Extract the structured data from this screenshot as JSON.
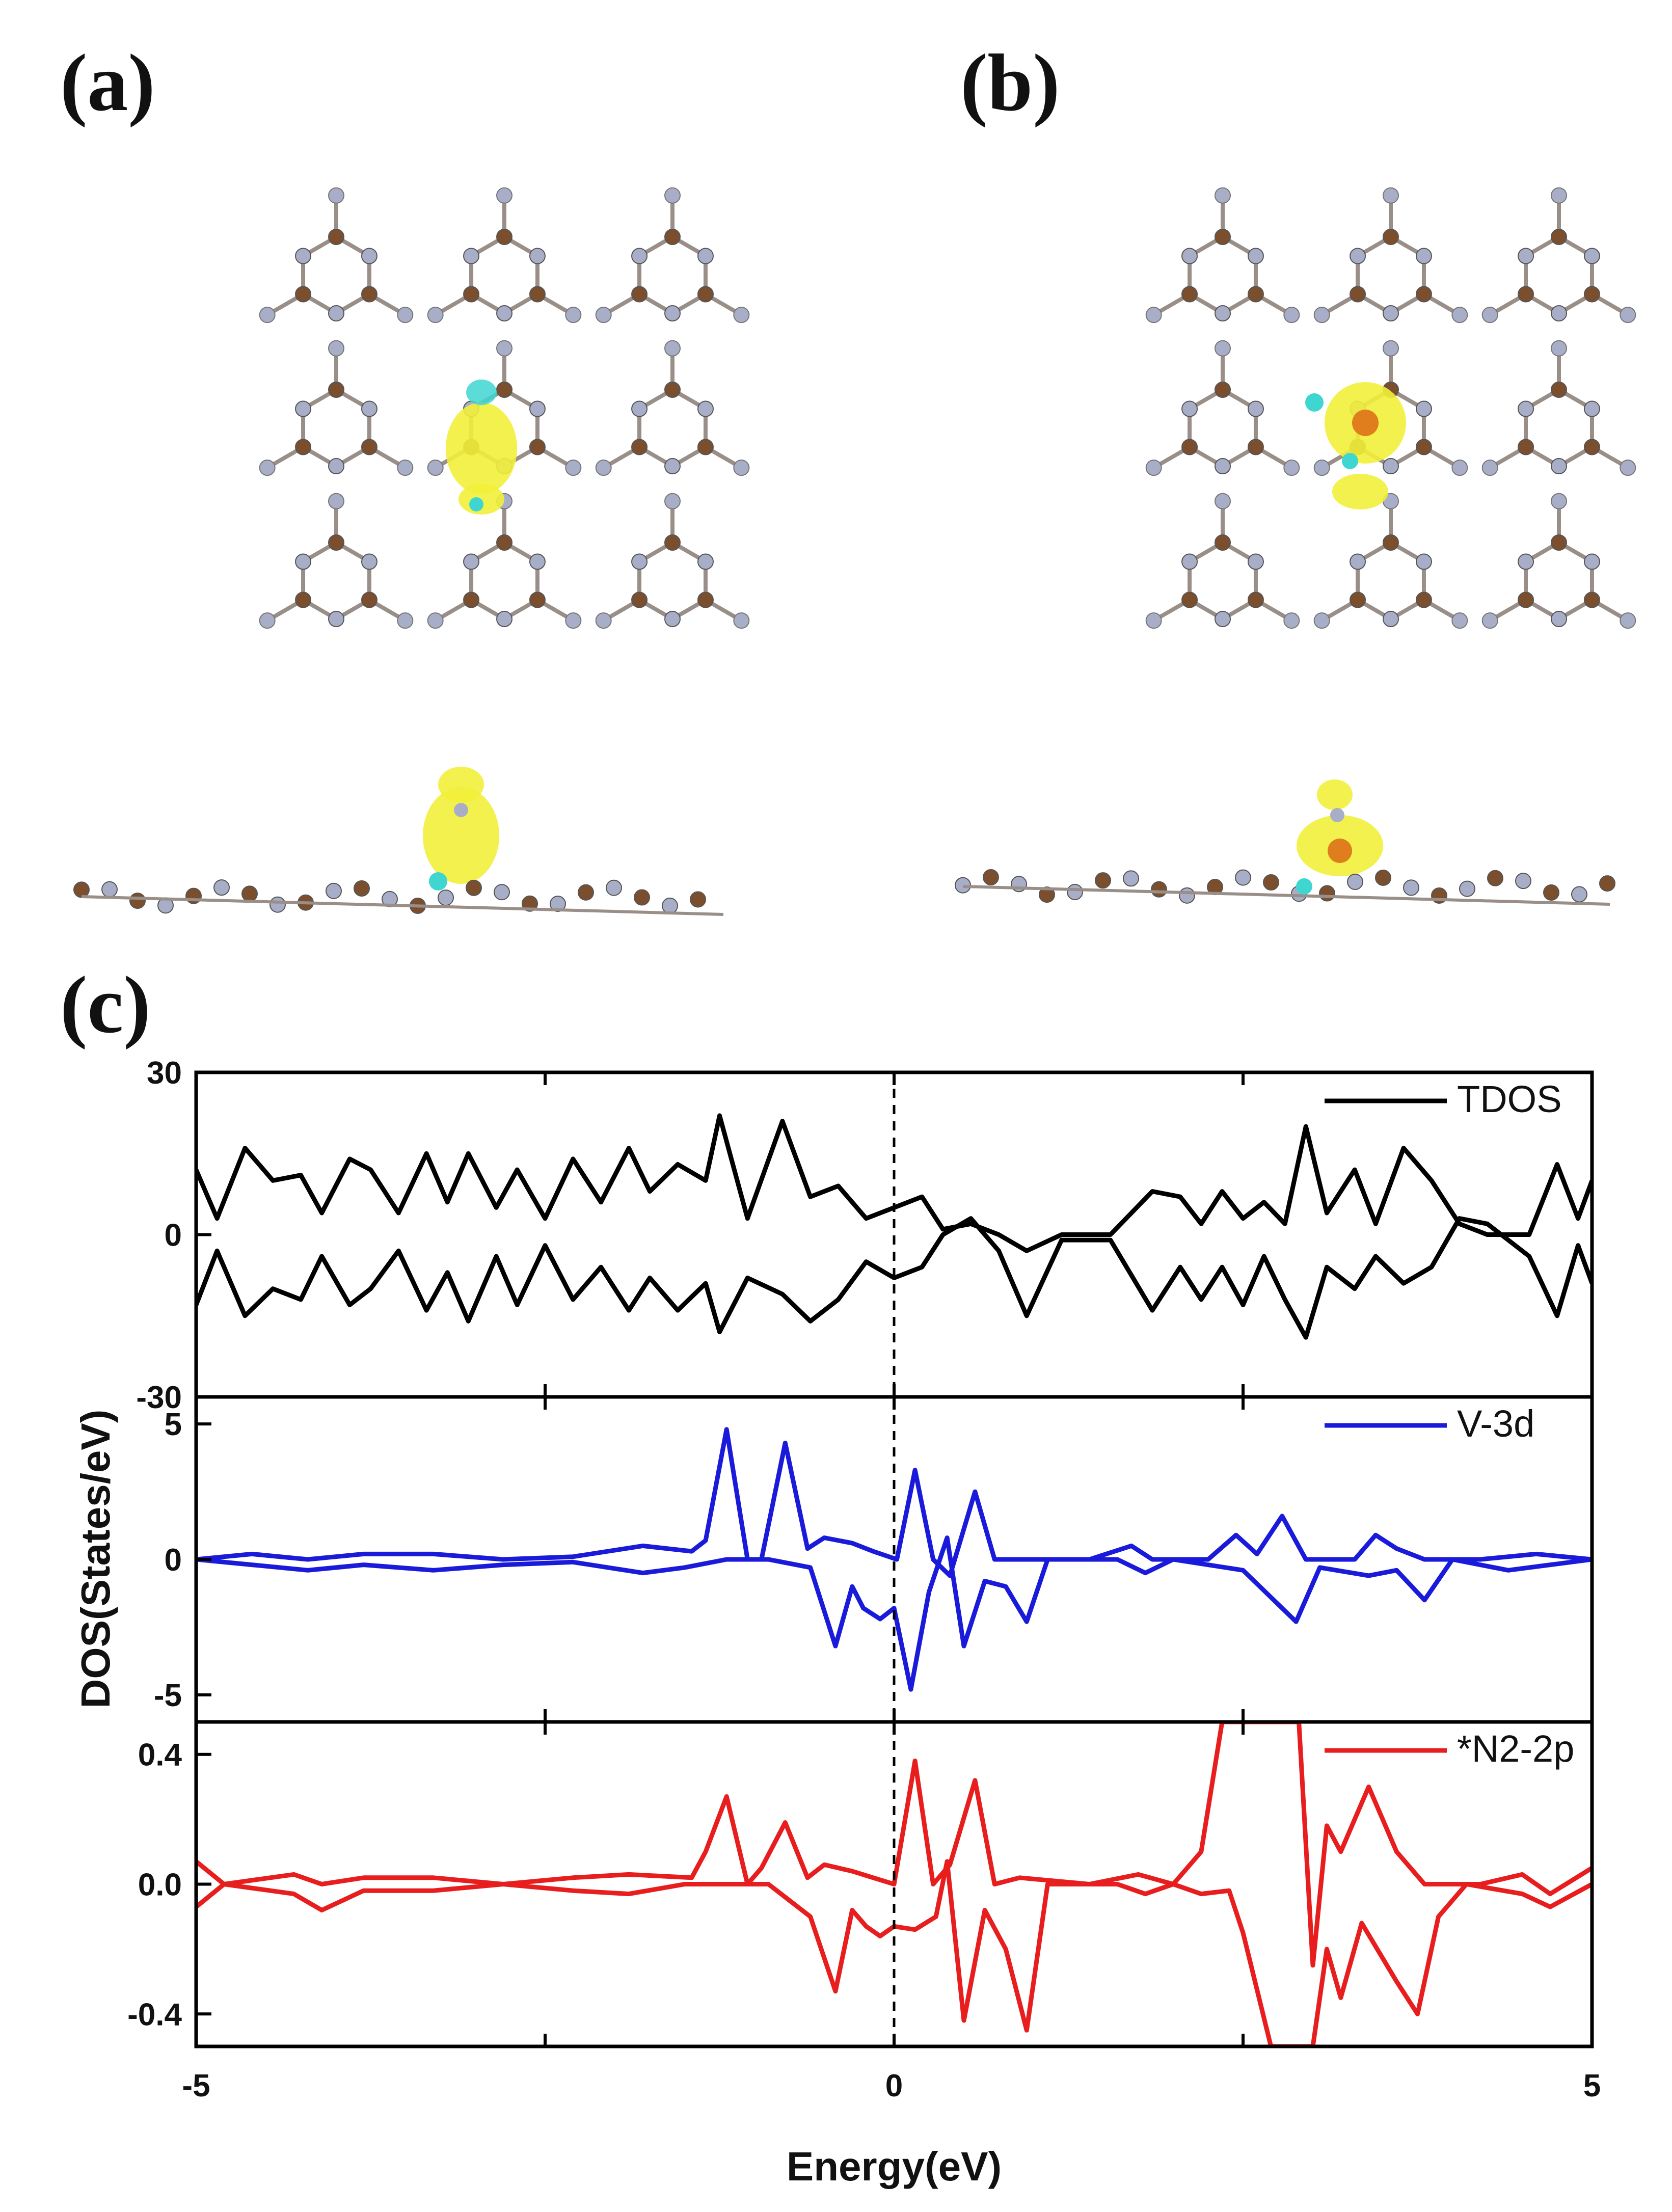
{
  "panels": {
    "a": "(a)",
    "b": "(b)",
    "c": "(c)"
  },
  "colors": {
    "carbon": "#7b4f2e",
    "nitrogen": "#a9aec8",
    "isosurface_yellow": "#f2ef3a",
    "isosurface_cyan": "#3fd6d2",
    "vanadium": "#e07d1c",
    "tdos": "#000000",
    "v3d": "#1a1adb",
    "n2p": "#e81d1d"
  },
  "chart_data": {
    "type": "line",
    "xlabel": "Energy(eV)",
    "ylabel": "DOS(States/eV)",
    "xlim": [
      -5,
      5
    ],
    "xticks": [
      "-5",
      "0",
      "5"
    ],
    "fermi_level": 0,
    "subplots": [
      {
        "name": "TDOS",
        "color": "#000000",
        "ylim": [
          -30,
          30
        ],
        "yticks": [
          "30",
          "0",
          "-30"
        ],
        "spin_up": [
          [
            -5,
            12
          ],
          [
            -4.85,
            3
          ],
          [
            -4.65,
            16
          ],
          [
            -4.45,
            10
          ],
          [
            -4.25,
            11
          ],
          [
            -4.1,
            4
          ],
          [
            -3.9,
            14
          ],
          [
            -3.75,
            12
          ],
          [
            -3.55,
            4
          ],
          [
            -3.35,
            15
          ],
          [
            -3.2,
            6
          ],
          [
            -3.05,
            15
          ],
          [
            -2.85,
            5
          ],
          [
            -2.7,
            12
          ],
          [
            -2.5,
            3
          ],
          [
            -2.3,
            14
          ],
          [
            -2.1,
            6
          ],
          [
            -1.9,
            16
          ],
          [
            -1.75,
            8
          ],
          [
            -1.55,
            13
          ],
          [
            -1.35,
            10
          ],
          [
            -1.25,
            22
          ],
          [
            -1.05,
            3
          ],
          [
            -0.8,
            21
          ],
          [
            -0.6,
            7
          ],
          [
            -0.4,
            9
          ],
          [
            -0.2,
            3
          ],
          [
            0,
            5
          ],
          [
            0.2,
            7
          ],
          [
            0.35,
            1
          ],
          [
            0.55,
            2
          ],
          [
            0.75,
            0
          ],
          [
            0.95,
            -3
          ],
          [
            1.2,
            0
          ],
          [
            1.55,
            0
          ],
          [
            1.85,
            8
          ],
          [
            2.05,
            7
          ],
          [
            2.2,
            2
          ],
          [
            2.35,
            8
          ],
          [
            2.5,
            3
          ],
          [
            2.65,
            6
          ],
          [
            2.8,
            2
          ],
          [
            2.95,
            20
          ],
          [
            3.1,
            4
          ],
          [
            3.3,
            12
          ],
          [
            3.45,
            2
          ],
          [
            3.65,
            16
          ],
          [
            3.85,
            10
          ],
          [
            4.05,
            2
          ],
          [
            4.25,
            0
          ],
          [
            4.55,
            0
          ],
          [
            4.75,
            13
          ],
          [
            4.9,
            3
          ],
          [
            5,
            10
          ]
        ],
        "spin_down": [
          [
            -5,
            -13
          ],
          [
            -4.85,
            -3
          ],
          [
            -4.65,
            -15
          ],
          [
            -4.45,
            -10
          ],
          [
            -4.25,
            -12
          ],
          [
            -4.1,
            -4
          ],
          [
            -3.9,
            -13
          ],
          [
            -3.75,
            -10
          ],
          [
            -3.55,
            -3
          ],
          [
            -3.35,
            -14
          ],
          [
            -3.2,
            -7
          ],
          [
            -3.05,
            -16
          ],
          [
            -2.85,
            -4
          ],
          [
            -2.7,
            -13
          ],
          [
            -2.5,
            -2
          ],
          [
            -2.3,
            -12
          ],
          [
            -2.1,
            -6
          ],
          [
            -1.9,
            -14
          ],
          [
            -1.75,
            -8
          ],
          [
            -1.55,
            -14
          ],
          [
            -1.35,
            -9
          ],
          [
            -1.25,
            -18
          ],
          [
            -1.05,
            -8
          ],
          [
            -0.8,
            -11
          ],
          [
            -0.6,
            -16
          ],
          [
            -0.4,
            -12
          ],
          [
            -0.2,
            -5
          ],
          [
            0,
            -8
          ],
          [
            0.2,
            -6
          ],
          [
            0.35,
            0
          ],
          [
            0.55,
            3
          ],
          [
            0.75,
            -3
          ],
          [
            0.95,
            -15
          ],
          [
            1.2,
            -1
          ],
          [
            1.55,
            -1
          ],
          [
            1.85,
            -14
          ],
          [
            2.05,
            -6
          ],
          [
            2.2,
            -12
          ],
          [
            2.35,
            -6
          ],
          [
            2.5,
            -13
          ],
          [
            2.65,
            -4
          ],
          [
            2.8,
            -12
          ],
          [
            2.95,
            -19
          ],
          [
            3.1,
            -6
          ],
          [
            3.3,
            -10
          ],
          [
            3.45,
            -4
          ],
          [
            3.65,
            -9
          ],
          [
            3.85,
            -6
          ],
          [
            4.05,
            3
          ],
          [
            4.25,
            2
          ],
          [
            4.55,
            -4
          ],
          [
            4.75,
            -15
          ],
          [
            4.9,
            -2
          ],
          [
            5,
            -9
          ]
        ]
      },
      {
        "name": "V-3d",
        "color": "#1a1adb",
        "ylim": [
          -6,
          6
        ],
        "yticks": [
          "5",
          "0",
          "-5"
        ],
        "spin_up": [
          [
            -5,
            0
          ],
          [
            -4.6,
            0.2
          ],
          [
            -4.2,
            0
          ],
          [
            -3.8,
            0.2
          ],
          [
            -3.3,
            0.2
          ],
          [
            -2.8,
            0
          ],
          [
            -2.3,
            0.1
          ],
          [
            -1.8,
            0.5
          ],
          [
            -1.45,
            0.3
          ],
          [
            -1.35,
            0.7
          ],
          [
            -1.2,
            4.8
          ],
          [
            -1.05,
            0
          ],
          [
            -0.95,
            0
          ],
          [
            -0.78,
            4.3
          ],
          [
            -0.62,
            0.4
          ],
          [
            -0.5,
            0.8
          ],
          [
            -0.3,
            0.6
          ],
          [
            -0.15,
            0.3
          ],
          [
            0.02,
            0
          ],
          [
            0.15,
            3.3
          ],
          [
            0.28,
            0
          ],
          [
            0.4,
            -0.6
          ],
          [
            0.58,
            2.5
          ],
          [
            0.72,
            0
          ],
          [
            0.9,
            0
          ],
          [
            1.4,
            0
          ],
          [
            1.7,
            0.5
          ],
          [
            1.85,
            0
          ],
          [
            2.25,
            0
          ],
          [
            2.45,
            0.9
          ],
          [
            2.6,
            0.2
          ],
          [
            2.78,
            1.6
          ],
          [
            2.95,
            0
          ],
          [
            3.3,
            0
          ],
          [
            3.45,
            0.9
          ],
          [
            3.6,
            0.4
          ],
          [
            3.8,
            0
          ],
          [
            4.2,
            0
          ],
          [
            4.6,
            0.2
          ],
          [
            5,
            0
          ]
        ],
        "spin_down": [
          [
            -5,
            0
          ],
          [
            -4.6,
            -0.2
          ],
          [
            -4.2,
            -0.4
          ],
          [
            -3.8,
            -0.2
          ],
          [
            -3.3,
            -0.4
          ],
          [
            -2.8,
            -0.2
          ],
          [
            -2.3,
            -0.1
          ],
          [
            -1.8,
            -0.5
          ],
          [
            -1.5,
            -0.3
          ],
          [
            -1.2,
            0
          ],
          [
            -0.9,
            0
          ],
          [
            -0.6,
            -0.3
          ],
          [
            -0.42,
            -3.2
          ],
          [
            -0.3,
            -1
          ],
          [
            -0.22,
            -1.8
          ],
          [
            -0.1,
            -2.2
          ],
          [
            0,
            -1.8
          ],
          [
            0.12,
            -4.8
          ],
          [
            0.25,
            -1.2
          ],
          [
            0.38,
            0.8
          ],
          [
            0.5,
            -3.2
          ],
          [
            0.65,
            -0.8
          ],
          [
            0.8,
            -1
          ],
          [
            0.95,
            -2.3
          ],
          [
            1.1,
            0
          ],
          [
            1.6,
            0
          ],
          [
            1.8,
            -0.5
          ],
          [
            2.0,
            0
          ],
          [
            2.5,
            -0.4
          ],
          [
            2.88,
            -2.3
          ],
          [
            3.05,
            -0.3
          ],
          [
            3.4,
            -0.6
          ],
          [
            3.6,
            -0.4
          ],
          [
            3.8,
            -1.5
          ],
          [
            4.0,
            0
          ],
          [
            4.4,
            -0.4
          ],
          [
            5,
            0
          ]
        ]
      },
      {
        "name": "*N2-2p",
        "color": "#e81d1d",
        "ylim": [
          -0.5,
          0.5
        ],
        "yticks": [
          "0.4",
          "0.0",
          "-0.4"
        ],
        "spin_up": [
          [
            -5,
            0.07
          ],
          [
            -4.8,
            0
          ],
          [
            -4.3,
            0.03
          ],
          [
            -4.1,
            0
          ],
          [
            -3.8,
            0.02
          ],
          [
            -3.3,
            0.02
          ],
          [
            -2.8,
            0
          ],
          [
            -2.3,
            0.02
          ],
          [
            -1.9,
            0.03
          ],
          [
            -1.45,
            0.02
          ],
          [
            -1.35,
            0.1
          ],
          [
            -1.2,
            0.27
          ],
          [
            -1.05,
            0
          ],
          [
            -0.95,
            0.05
          ],
          [
            -0.78,
            0.19
          ],
          [
            -0.62,
            0.02
          ],
          [
            -0.5,
            0.06
          ],
          [
            -0.3,
            0.04
          ],
          [
            -0.15,
            0.02
          ],
          [
            0,
            0
          ],
          [
            0.15,
            0.38
          ],
          [
            0.28,
            0
          ],
          [
            0.4,
            0.06
          ],
          [
            0.58,
            0.32
          ],
          [
            0.72,
            0
          ],
          [
            0.9,
            0.02
          ],
          [
            1.4,
            0
          ],
          [
            1.75,
            0.03
          ],
          [
            2.0,
            0
          ],
          [
            2.2,
            0.1
          ],
          [
            2.35,
            0.5
          ],
          [
            2.55,
            0.5
          ],
          [
            2.65,
            0.5
          ],
          [
            2.9,
            0.5
          ],
          [
            3.0,
            -0.25
          ],
          [
            3.1,
            0.18
          ],
          [
            3.2,
            0.1
          ],
          [
            3.4,
            0.3
          ],
          [
            3.6,
            0.1
          ],
          [
            3.8,
            0
          ],
          [
            4.2,
            0
          ],
          [
            4.5,
            0.03
          ],
          [
            4.7,
            -0.03
          ],
          [
            5,
            0.05
          ]
        ],
        "spin_down": [
          [
            -5,
            -0.07
          ],
          [
            -4.8,
            0
          ],
          [
            -4.3,
            -0.03
          ],
          [
            -4.1,
            -0.08
          ],
          [
            -3.8,
            -0.02
          ],
          [
            -3.3,
            -0.02
          ],
          [
            -2.8,
            0
          ],
          [
            -2.3,
            -0.02
          ],
          [
            -1.9,
            -0.03
          ],
          [
            -1.5,
            0
          ],
          [
            -1.2,
            0
          ],
          [
            -0.9,
            0
          ],
          [
            -0.6,
            -0.1
          ],
          [
            -0.42,
            -0.33
          ],
          [
            -0.3,
            -0.08
          ],
          [
            -0.2,
            -0.13
          ],
          [
            -0.1,
            -0.16
          ],
          [
            0,
            -0.13
          ],
          [
            0.15,
            -0.14
          ],
          [
            0.3,
            -0.1
          ],
          [
            0.38,
            0.07
          ],
          [
            0.5,
            -0.42
          ],
          [
            0.65,
            -0.08
          ],
          [
            0.8,
            -0.2
          ],
          [
            0.95,
            -0.45
          ],
          [
            1.1,
            0
          ],
          [
            1.6,
            0
          ],
          [
            1.8,
            -0.03
          ],
          [
            2.0,
            0
          ],
          [
            2.2,
            -0.03
          ],
          [
            2.4,
            -0.02
          ],
          [
            2.5,
            -0.15
          ],
          [
            2.7,
            -0.5
          ],
          [
            3.0,
            -0.5
          ],
          [
            3.1,
            -0.2
          ],
          [
            3.2,
            -0.35
          ],
          [
            3.35,
            -0.12
          ],
          [
            3.6,
            -0.3
          ],
          [
            3.75,
            -0.4
          ],
          [
            3.9,
            -0.1
          ],
          [
            4.1,
            0
          ],
          [
            4.5,
            -0.03
          ],
          [
            4.7,
            -0.07
          ],
          [
            5,
            0
          ]
        ]
      }
    ]
  }
}
